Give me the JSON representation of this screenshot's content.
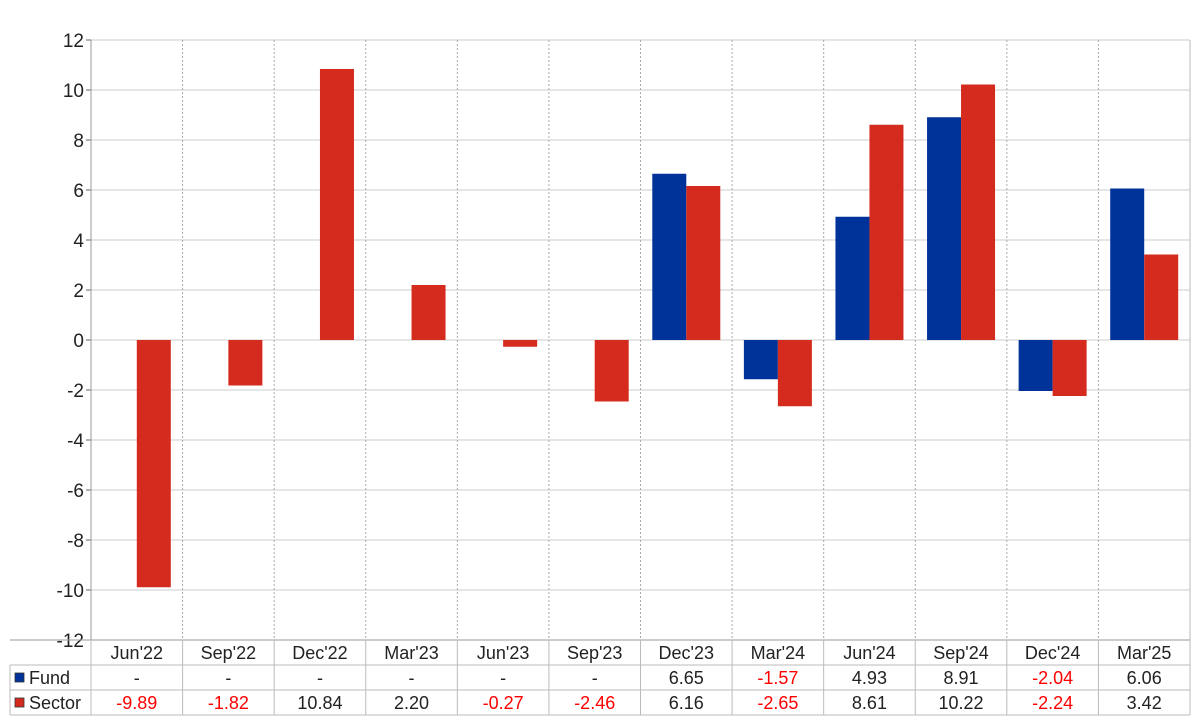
{
  "chart_data": {
    "type": "bar",
    "title": "",
    "xlabel": "",
    "ylabel": "",
    "ylim": [
      -12,
      12
    ],
    "yticks": [
      -12,
      -10,
      -8,
      -6,
      -4,
      -2,
      0,
      2,
      4,
      6,
      8,
      10,
      12
    ],
    "grid": true,
    "legend": "table-bottom",
    "categories": [
      "Jun'22",
      "Sep'22",
      "Dec'22",
      "Mar'23",
      "Jun'23",
      "Sep'23",
      "Dec'23",
      "Mar'24",
      "Jun'24",
      "Sep'24",
      "Dec'24",
      "Mar'25"
    ],
    "series": [
      {
        "name": "Fund",
        "color": "#003399",
        "values": [
          null,
          null,
          null,
          null,
          null,
          null,
          6.65,
          -1.57,
          4.93,
          8.91,
          -2.04,
          6.06
        ],
        "labels": [
          "-",
          "-",
          "-",
          "-",
          "-",
          "-",
          "6.65",
          "-1.57",
          "4.93",
          "8.91",
          "-2.04",
          "6.06"
        ]
      },
      {
        "name": "Sector",
        "color": "#d52b1e",
        "values": [
          -9.89,
          -1.82,
          10.84,
          2.2,
          -0.27,
          -2.46,
          6.16,
          -2.65,
          8.61,
          10.22,
          -2.24,
          3.42
        ],
        "labels": [
          "-9.89",
          "-1.82",
          "10.84",
          "2.20",
          "-0.27",
          "-2.46",
          "6.16",
          "-2.65",
          "8.61",
          "10.22",
          "-2.24",
          "3.42"
        ]
      }
    ],
    "colors": {
      "negative_label": "#ff0000",
      "positive_label": "#222222"
    }
  }
}
